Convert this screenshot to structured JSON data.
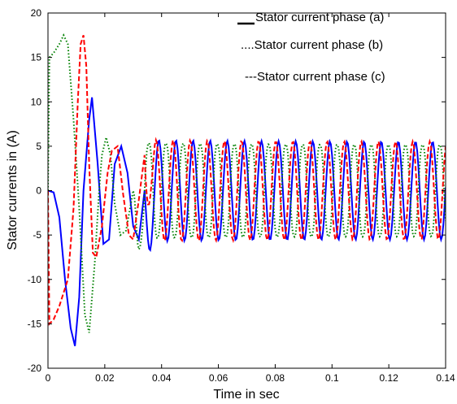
{
  "chart_data": {
    "type": "line",
    "title": "",
    "xlabel": "Time in sec",
    "ylabel": "Stator currents in (A)",
    "xlim": [
      0,
      0.14
    ],
    "ylim": [
      -20,
      20
    ],
    "x_ticks": [
      0,
      0.02,
      0.04,
      0.06,
      0.08,
      0.1,
      0.12,
      0.14
    ],
    "x_tick_labels": [
      "0",
      "0.02",
      "0.04",
      "0.06",
      "0.08",
      "0.1",
      "0.12",
      "0.14"
    ],
    "y_ticks": [
      -20,
      -15,
      -10,
      -5,
      0,
      5,
      10,
      15,
      20
    ],
    "y_tick_labels": [
      "-20",
      "-15",
      "-10",
      "-5",
      "0",
      "5",
      "10",
      "15",
      "20"
    ],
    "grid": false,
    "legend_position": "top-right",
    "legend": {
      "entries": [
        "Stator current phase (a)",
        "Stator current phase (b)",
        "Stator current phase (c)"
      ],
      "prefixes": [
        "",
        "....",
        "---"
      ]
    },
    "series": [
      {
        "name": "Stator current phase (a)",
        "color": "#0000ff",
        "style": "solid",
        "x": [
          0,
          0.002,
          0.004,
          0.006,
          0.008,
          0.0095,
          0.011,
          0.0125,
          0.0145,
          0.0155,
          0.0175,
          0.0195,
          0.0215,
          0.0235,
          0.0258,
          0.028,
          0.03,
          0.032,
          0.034
        ],
        "values": [
          0,
          -0.2,
          -3,
          -10,
          -15.5,
          -17.5,
          -12,
          0,
          8,
          10.5,
          3,
          -6,
          -5.5,
          3,
          5,
          2,
          -4,
          -5.5,
          0
        ]
      },
      {
        "name": "Stator current phase (b)",
        "color": "#008000",
        "style": "dotted",
        "x": [
          0,
          0.0005,
          0.002,
          0.004,
          0.0055,
          0.007,
          0.009,
          0.011,
          0.013,
          0.0145,
          0.0165,
          0.018,
          0.019,
          0.0205,
          0.022,
          0.0235,
          0.0255,
          0.0275,
          0.03
        ],
        "values": [
          0,
          15,
          15.5,
          16.5,
          17.5,
          16.5,
          8,
          -2,
          -14,
          -16,
          -8,
          0,
          4,
          6,
          4,
          -1.5,
          -5,
          -4.5,
          0
        ]
      },
      {
        "name": "Stator current phase (c)",
        "color": "#ff0000",
        "style": "dashed",
        "x": [
          0,
          0.0005,
          0.002,
          0.004,
          0.007,
          0.009,
          0.0105,
          0.0115,
          0.0125,
          0.0135,
          0.0145,
          0.0158,
          0.017,
          0.019,
          0.021,
          0.0225,
          0.0245,
          0.0265,
          0.0285,
          0.03,
          0.032,
          0.034
        ],
        "values": [
          0,
          -15,
          -14.5,
          -13,
          -10,
          -2,
          10,
          16.5,
          17.5,
          14,
          3,
          -7,
          -7.5,
          -4,
          2,
          4.5,
          5,
          -0.5,
          -5,
          -5.5,
          -1,
          4
        ]
      }
    ]
  }
}
